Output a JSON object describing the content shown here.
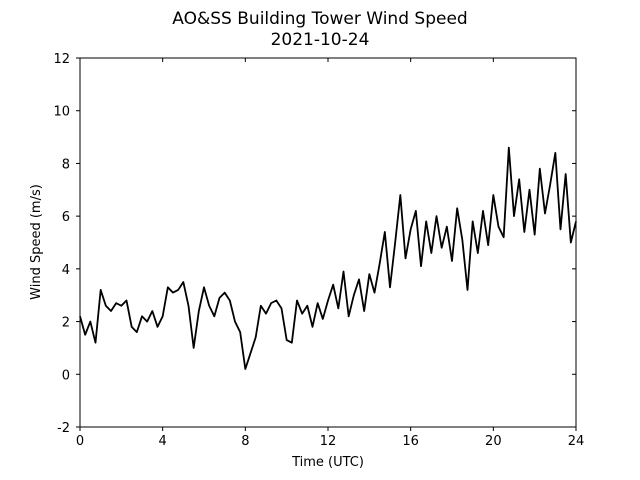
{
  "chart_data": {
    "type": "line",
    "title": "AO&SS Building Tower Wind Speed",
    "subtitle": "2021-10-24",
    "x_label": "Time (UTC)",
    "y_label": "Wind Speed (m/s)",
    "xlim": [
      0,
      24
    ],
    "xticks": [
      0,
      4,
      8,
      12,
      16,
      20,
      24
    ],
    "ylim": [
      -2,
      12
    ],
    "yticks": [
      -2,
      0,
      2,
      4,
      6,
      8,
      10,
      12
    ],
    "grid": false,
    "series": [
      {
        "color": "#000000",
        "x": [
          0,
          0.25,
          0.5,
          0.75,
          1,
          1.25,
          1.5,
          1.75,
          2,
          2.25,
          2.5,
          2.75,
          3,
          3.25,
          3.5,
          3.75,
          4,
          4.25,
          4.5,
          4.75,
          5,
          5.25,
          5.5,
          5.75,
          6,
          6.25,
          6.5,
          6.75,
          7,
          7.25,
          7.5,
          7.75,
          8,
          8.25,
          8.5,
          8.75,
          9,
          9.25,
          9.5,
          9.75,
          10,
          10.25,
          10.5,
          10.75,
          11,
          11.25,
          11.5,
          11.75,
          12,
          12.25,
          12.5,
          12.75,
          13,
          13.25,
          13.5,
          13.75,
          14,
          14.25,
          14.5,
          14.75,
          15,
          15.25,
          15.5,
          15.75,
          16,
          16.25,
          16.5,
          16.75,
          17,
          17.25,
          17.5,
          17.75,
          18,
          18.25,
          18.5,
          18.75,
          19,
          19.25,
          19.5,
          19.75,
          20,
          20.25,
          20.5,
          20.75,
          21,
          21.25,
          21.5,
          21.75,
          22,
          22.25,
          22.5,
          22.75,
          23,
          23.25,
          23.5,
          23.75,
          24
        ],
        "values": [
          2.2,
          1.5,
          2.0,
          1.2,
          3.2,
          2.6,
          2.4,
          2.7,
          2.6,
          2.8,
          1.8,
          1.6,
          2.2,
          2.0,
          2.4,
          1.8,
          2.2,
          3.3,
          3.1,
          3.2,
          3.5,
          2.6,
          1.0,
          2.4,
          3.3,
          2.6,
          2.2,
          2.9,
          3.1,
          2.8,
          2.0,
          1.6,
          0.2,
          0.8,
          1.4,
          2.6,
          2.3,
          2.7,
          2.8,
          2.5,
          1.3,
          1.2,
          2.8,
          2.3,
          2.6,
          1.8,
          2.7,
          2.1,
          2.8,
          3.4,
          2.5,
          3.9,
          2.2,
          3.0,
          3.6,
          2.4,
          3.8,
          3.1,
          4.2,
          5.4,
          3.3,
          5.0,
          6.8,
          4.4,
          5.5,
          6.2,
          4.1,
          5.8,
          4.6,
          6.0,
          4.8,
          5.6,
          4.3,
          6.3,
          5.1,
          3.2,
          5.8,
          4.6,
          6.2,
          4.9,
          6.8,
          5.6,
          5.2,
          8.6,
          6.0,
          7.4,
          5.4,
          7.0,
          5.3,
          7.8,
          6.1,
          7.2,
          8.4,
          5.5,
          7.6,
          5.0,
          5.8
        ]
      }
    ]
  }
}
